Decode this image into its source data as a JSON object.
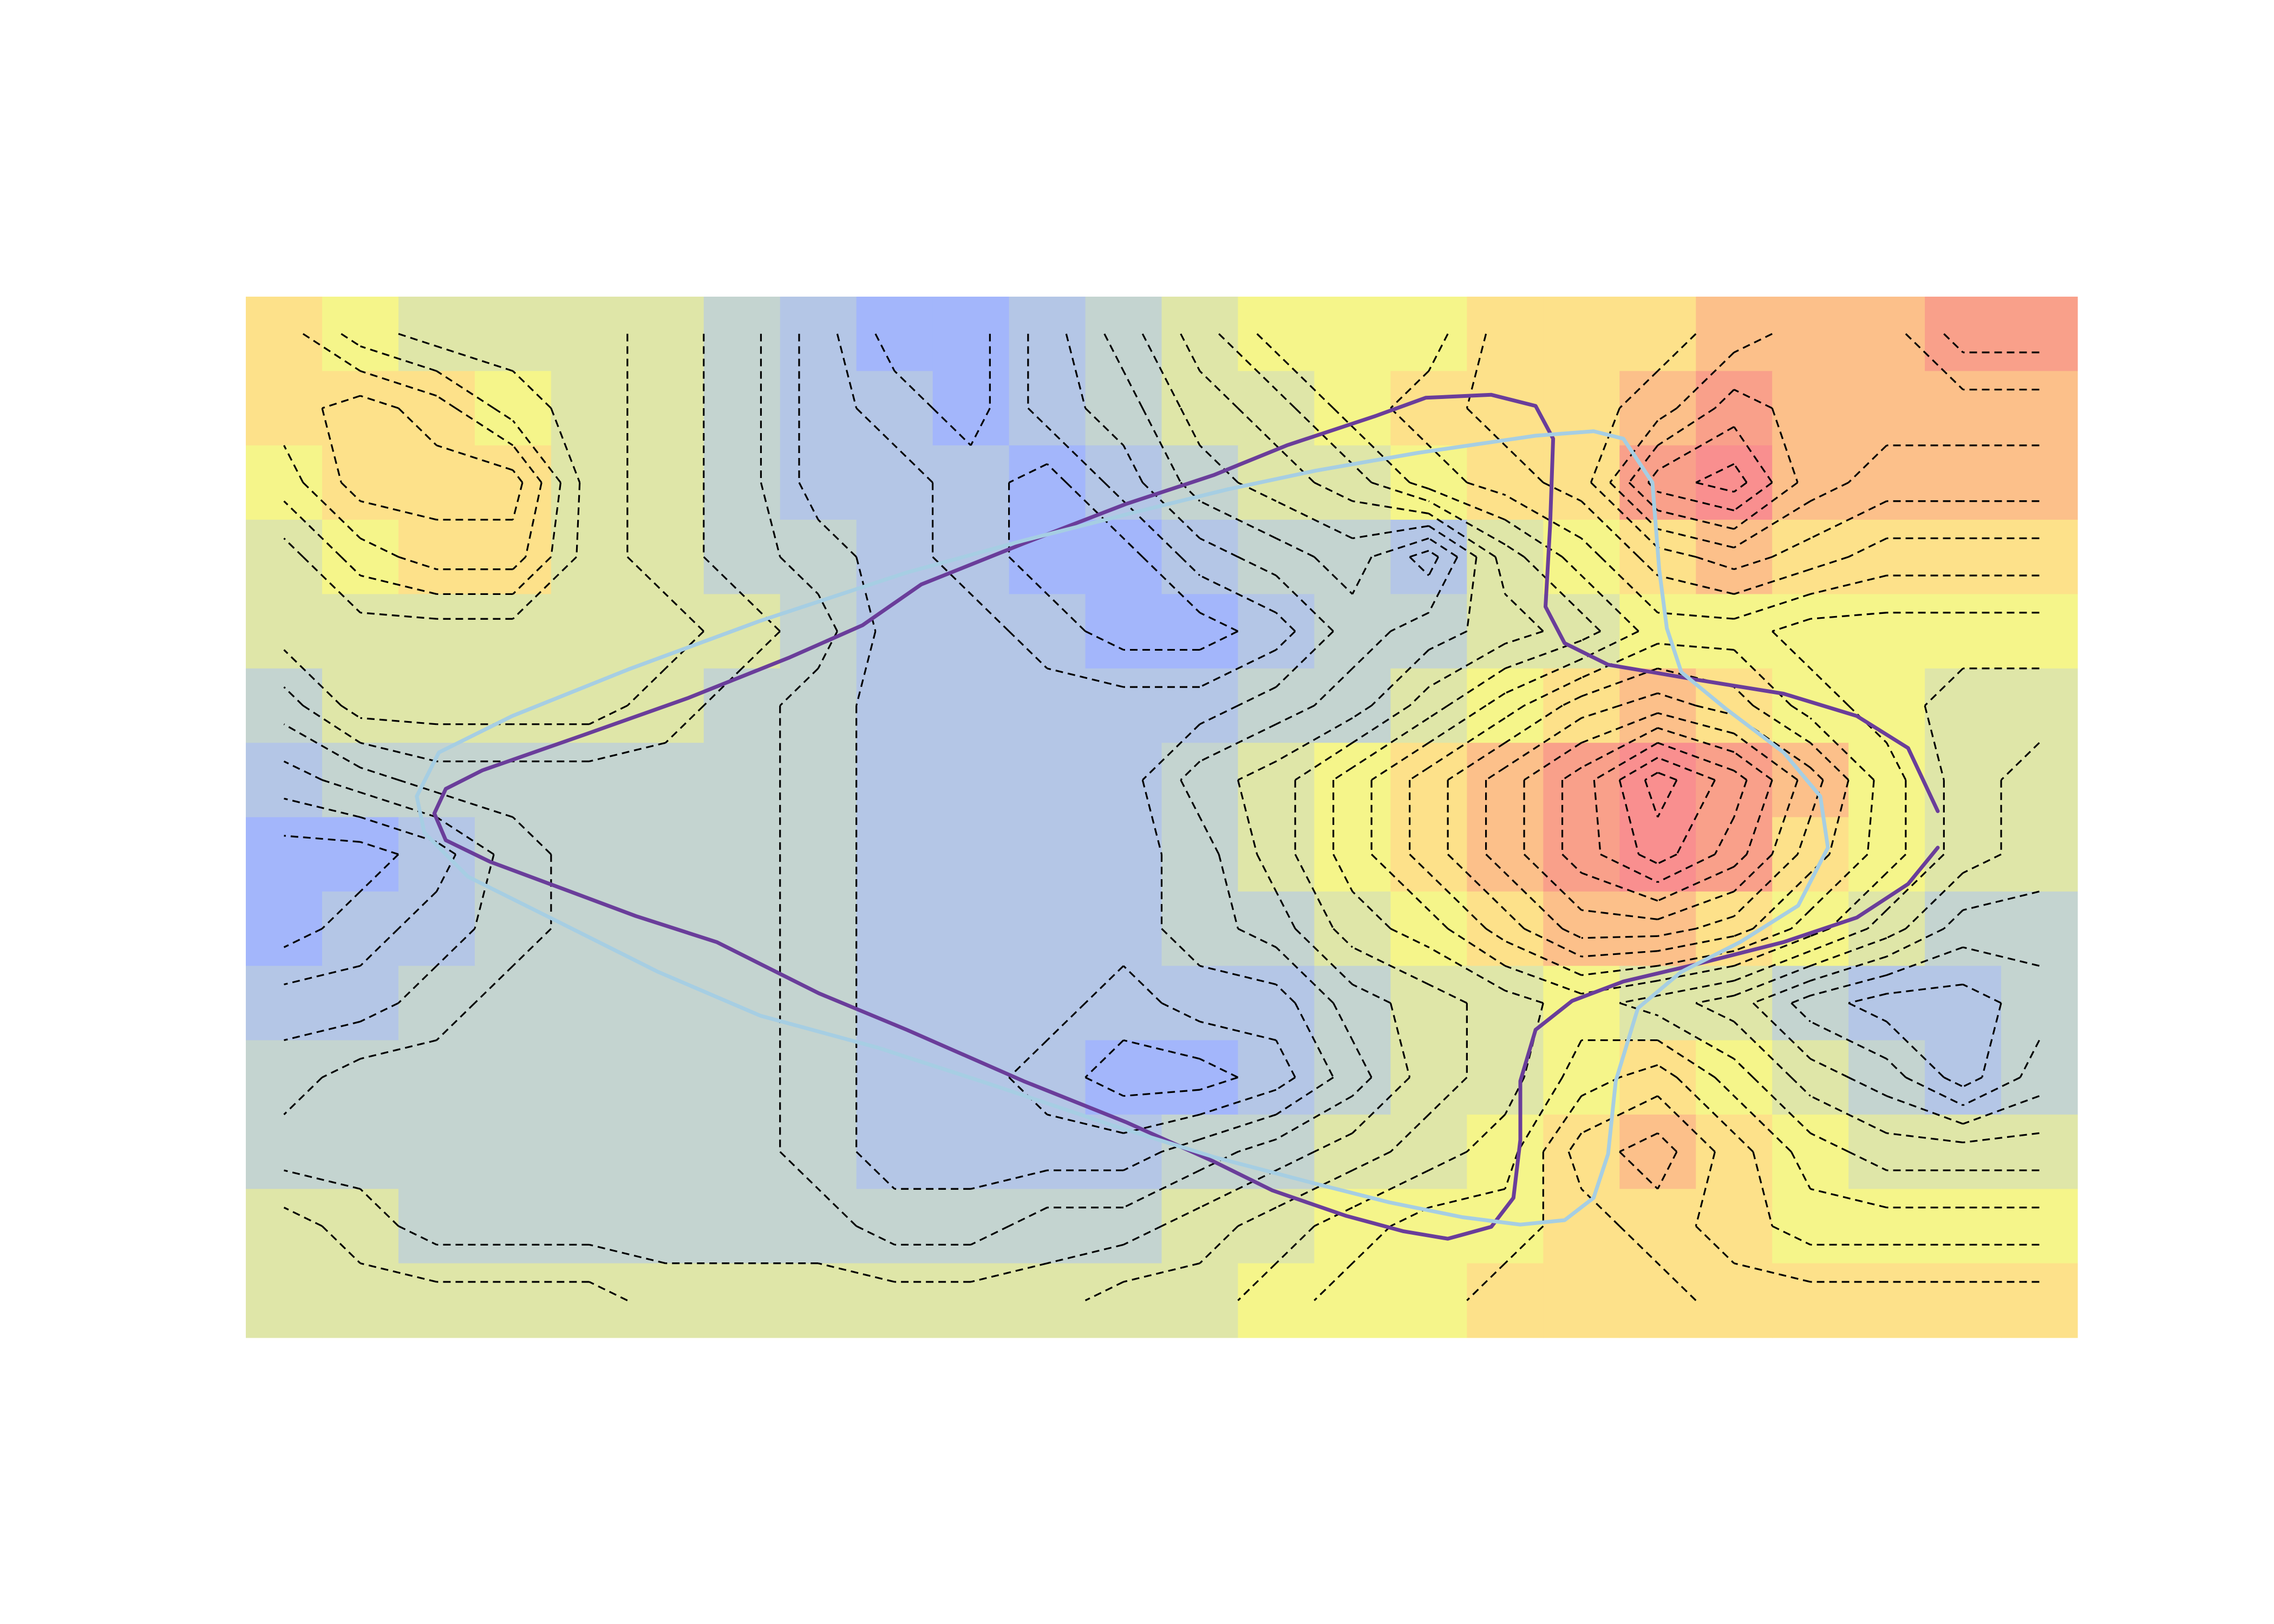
{
  "chart_data": {
    "type": "heatmap",
    "xlim": [
      0,
      24
    ],
    "ylim": [
      14,
      0
    ],
    "zlim": [
      2,
      10
    ],
    "colors": [
      "#a3b6fb",
      "#b4c6e6",
      "#c4d4d0",
      "#dfe6a8",
      "#f5f58a",
      "#fde18a",
      "#fcc08a",
      "#f9a08a",
      "#f98f8f"
    ],
    "z": [
      [
        6.5,
        5.5,
        5,
        5,
        5,
        4.5,
        4,
        3,
        2,
        2,
        3,
        4,
        5,
        6,
        6,
        6,
        7,
        7,
        7,
        7.5,
        8,
        8,
        9,
        9
      ],
      [
        6.5,
        7,
        6.5,
        5.5,
        5,
        4.5,
        4,
        3,
        2.5,
        2,
        3,
        3.5,
        4.5,
        5,
        6,
        6.5,
        7,
        7,
        7.5,
        8.5,
        8,
        8,
        8,
        8
      ],
      [
        6,
        7,
        7,
        7,
        5,
        4.5,
        4,
        3,
        3,
        2.5,
        2,
        3,
        4,
        4.5,
        5,
        6,
        6.5,
        7,
        9,
        9.5,
        8,
        7.5,
        7.5,
        7.5
      ],
      [
        5,
        6,
        6.5,
        6.5,
        5,
        4.5,
        4,
        3.5,
        3,
        2.5,
        2,
        2,
        3,
        3.5,
        4,
        3,
        5,
        6,
        7,
        7.5,
        7,
        6.5,
        6.5,
        6.5
      ],
      [
        5,
        5,
        5,
        5,
        5,
        5,
        4.5,
        4,
        3,
        3,
        2.5,
        2,
        2,
        2.5,
        3.5,
        4,
        4.5,
        5,
        6,
        6,
        5.5,
        5.5,
        5.5,
        5.5
      ],
      [
        4,
        5,
        5,
        5,
        5,
        4.5,
        4,
        3.5,
        3,
        3,
        3,
        3,
        3,
        3.5,
        4,
        5,
        6,
        7,
        7.5,
        7,
        6,
        5.5,
        5,
        5
      ],
      [
        3,
        3.5,
        4,
        4,
        4,
        4,
        4,
        3.5,
        3,
        3,
        3,
        3,
        4,
        4.5,
        5.5,
        6.5,
        7.5,
        8.5,
        10,
        9,
        7.5,
        6,
        5,
        4.5
      ],
      [
        2,
        2,
        2.5,
        3.5,
        4,
        4,
        4,
        3.5,
        3,
        3,
        3,
        3,
        3.5,
        4.5,
        5.5,
        6.5,
        7.5,
        8.5,
        9.5,
        8.5,
        7,
        6,
        5,
        4.5
      ],
      [
        2,
        2.5,
        3,
        3.5,
        4,
        4,
        4,
        3.5,
        3,
        3,
        3,
        3,
        3.5,
        4,
        5,
        5.5,
        6.5,
        7.5,
        7.5,
        7,
        6,
        5,
        4,
        4
      ],
      [
        3,
        3,
        3.5,
        4,
        4,
        4,
        4,
        3.5,
        3,
        3,
        3,
        2.5,
        3,
        3,
        4,
        4.5,
        5,
        5.5,
        5,
        4.5,
        3.5,
        3,
        3,
        3.5
      ],
      [
        3.5,
        4,
        4,
        4,
        4,
        4,
        4,
        3.5,
        3,
        3,
        2.5,
        2,
        2,
        2.5,
        3.5,
        4.5,
        5,
        6,
        6.5,
        5.5,
        4.5,
        4,
        3,
        4
      ],
      [
        4,
        4,
        4,
        4,
        4,
        4,
        4,
        3.5,
        3,
        3,
        3,
        3,
        3.5,
        4,
        4.5,
        5,
        5.5,
        7,
        7.5,
        6.5,
        5.5,
        5,
        5,
        5
      ],
      [
        5,
        4.5,
        4,
        4,
        4,
        4,
        4,
        4,
        3.5,
        3.5,
        4,
        4,
        4.5,
        5,
        5.5,
        6,
        6,
        6.5,
        7,
        6.5,
        6,
        6,
        6,
        6
      ],
      [
        5,
        5,
        5,
        5,
        5,
        4.5,
        4.5,
        4.5,
        4.5,
        4.5,
        4.5,
        5,
        5,
        5.5,
        6,
        6,
        6.5,
        6.5,
        6.5,
        7,
        7,
        7,
        7,
        7
      ]
    ],
    "contour_levels": [
      2.25,
      2.75,
      3.25,
      3.75,
      4.25,
      4.75,
      5.25,
      5.75,
      6.25,
      6.75,
      7.25,
      7.75,
      8.25,
      8.75,
      9.25,
      9.75
    ],
    "contour_color": "#000000",
    "series": [
      {
        "color": "#6a3d9a",
        "x": [
          22.17,
          21.78,
          21.11,
          20.15,
          19.0,
          17.85,
          17.28,
          17.03,
          17.09,
          17.13,
          16.9,
          16.32,
          15.46,
          14.79,
          13.64,
          12.68,
          11.53,
          10.19,
          8.85,
          8.08,
          7.13,
          5.79,
          4.44,
          3.1,
          2.62,
          2.47,
          2.62,
          3.2,
          4.25,
          5.11,
          6.17,
          7.51,
          8.66,
          10.19,
          11.53,
          12.68,
          13.45,
          14.41,
          15.17,
          15.75,
          16.32,
          16.61,
          16.7,
          16.7,
          16.9,
          17.38,
          18.05,
          19.0,
          20.15,
          21.11,
          21.78,
          22.17
        ],
        "y": [
          6.92,
          6.07,
          5.64,
          5.34,
          5.15,
          4.95,
          4.66,
          4.17,
          3.08,
          1.91,
          1.47,
          1.32,
          1.36,
          1.61,
          2.0,
          2.4,
          2.79,
          3.32,
          3.87,
          4.42,
          4.85,
          5.4,
          5.89,
          6.37,
          6.62,
          6.95,
          7.31,
          7.6,
          8.0,
          8.33,
          8.68,
          9.37,
          9.86,
          10.55,
          11.1,
          11.63,
          12.02,
          12.36,
          12.57,
          12.67,
          12.51,
          12.12,
          11.34,
          10.55,
          9.86,
          9.47,
          9.21,
          8.98,
          8.68,
          8.35,
          7.9,
          7.41
        ]
      },
      {
        "color": "#a6cee3",
        "x": [
          20.63,
          20.15,
          19.39,
          18.81,
          18.62,
          18.52,
          18.43,
          18.05,
          17.66,
          16.9,
          15.36,
          14.02,
          12.87,
          11.53,
          10.19,
          8.66,
          6.74,
          5.02,
          3.49,
          2.53,
          2.24,
          2.34,
          2.91,
          4.06,
          5.4,
          6.74,
          8.28,
          9.81,
          11.34,
          12.68,
          14.02,
          14.98,
          15.94,
          16.7,
          17.28,
          17.66,
          17.85,
          17.95,
          18.24,
          18.81,
          19.58,
          20.34,
          20.73,
          20.63
        ],
        "y": [
          6.72,
          6.13,
          5.54,
          5.05,
          4.46,
          3.67,
          2.5,
          1.91,
          1.81,
          1.87,
          2.1,
          2.34,
          2.59,
          2.93,
          3.28,
          3.71,
          4.36,
          5.01,
          5.64,
          6.13,
          6.72,
          7.21,
          7.8,
          8.39,
          9.08,
          9.67,
          10.1,
          10.61,
          11.14,
          11.57,
          11.93,
          12.18,
          12.38,
          12.48,
          12.42,
          12.12,
          11.53,
          10.55,
          9.57,
          9.08,
          8.68,
          8.19,
          7.41,
          6.72
        ]
      }
    ]
  }
}
